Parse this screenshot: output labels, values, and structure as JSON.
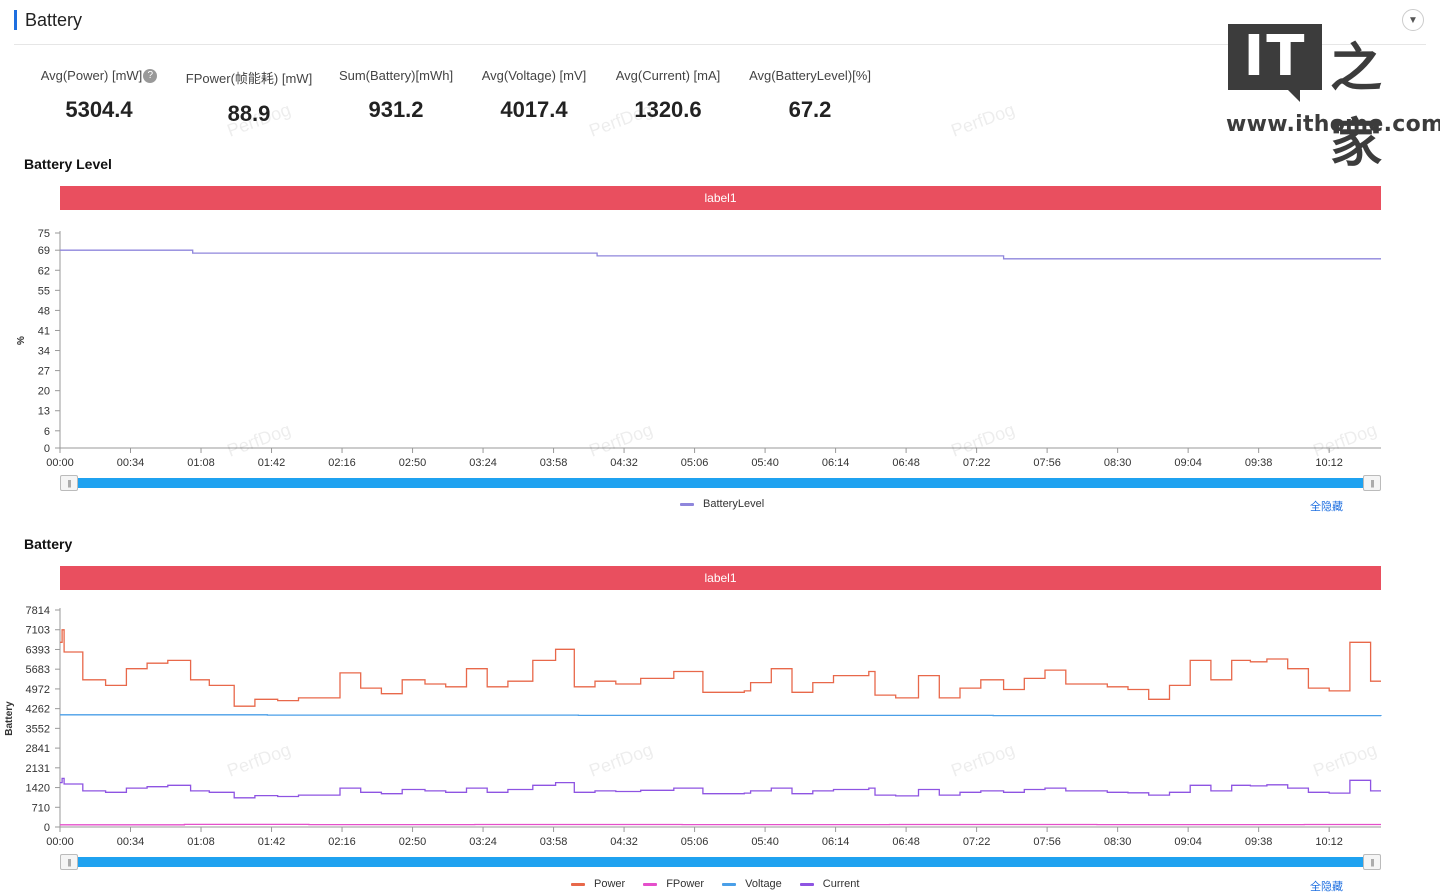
{
  "section": {
    "title": "Battery"
  },
  "stats": [
    {
      "label": "Avg(Power) [mW]",
      "value": "5304.4",
      "help": true
    },
    {
      "label": "FPower(帧能耗) [mW]",
      "value": "88.9"
    },
    {
      "label": "Sum(Battery)[mWh]",
      "value": "931.2"
    },
    {
      "label": "Avg(Voltage) [mV]",
      "value": "4017.4"
    },
    {
      "label": "Avg(Current) [mA]",
      "value": "1320.6"
    },
    {
      "label": "Avg(BatteryLevel)[%]",
      "value": "67.2"
    }
  ],
  "watermark": "PerfDog",
  "logo": {
    "it": "IT",
    "cn": "之家",
    "url": "www.ithome.com"
  },
  "hide_all_label": "全隐藏",
  "chart_data": [
    {
      "type": "line",
      "title": "Battery Level",
      "label_bar": "label1",
      "ylabel": "%",
      "yticks": [
        0,
        6,
        13,
        20,
        27,
        34,
        41,
        48,
        55,
        62,
        69,
        75
      ],
      "ylim": [
        0,
        75
      ],
      "x_ticks": [
        "00:00",
        "00:34",
        "01:08",
        "01:42",
        "02:16",
        "02:50",
        "03:24",
        "03:58",
        "04:32",
        "05:06",
        "05:40",
        "06:14",
        "06:48",
        "07:22",
        "07:56",
        "08:30",
        "09:04",
        "09:38",
        "10:12"
      ],
      "x_max_sec": 637,
      "grid": false,
      "series": [
        {
          "name": "BatteryLevel",
          "color": "#8f86dc",
          "points": [
            [
              0,
              69
            ],
            [
              64,
              69
            ],
            [
              64,
              68
            ],
            [
              259,
              68
            ],
            [
              259,
              67
            ],
            [
              455,
              67
            ],
            [
              455,
              66
            ],
            [
              637,
              66
            ]
          ]
        }
      ]
    },
    {
      "type": "line",
      "title": "Battery",
      "label_bar": "label1",
      "ylabel": "Battery",
      "yticks": [
        0,
        710,
        1420,
        2131,
        2841,
        3552,
        4262,
        4972,
        5683,
        6393,
        7103,
        7814
      ],
      "ylim": [
        0,
        7814
      ],
      "x_ticks": [
        "00:00",
        "00:34",
        "01:08",
        "01:42",
        "02:16",
        "02:50",
        "03:24",
        "03:58",
        "04:32",
        "05:06",
        "05:40",
        "06:14",
        "06:48",
        "07:22",
        "07:56",
        "08:30",
        "09:04",
        "09:38",
        "10:12"
      ],
      "x_max_sec": 637,
      "grid": false,
      "series": [
        {
          "name": "Power",
          "color": "#e8684a",
          "steps": [
            [
              0,
              6650
            ],
            [
              1,
              7100
            ],
            [
              2,
              6300
            ],
            [
              11,
              5300
            ],
            [
              22,
              5100
            ],
            [
              32,
              5700
            ],
            [
              42,
              5900
            ],
            [
              52,
              6000
            ],
            [
              63,
              5300
            ],
            [
              72,
              5100
            ],
            [
              84,
              4350
            ],
            [
              94,
              4600
            ],
            [
              105,
              4550
            ],
            [
              115,
              4650
            ],
            [
              135,
              5550
            ],
            [
              145,
              5000
            ],
            [
              155,
              4800
            ],
            [
              165,
              5300
            ],
            [
              176,
              5150
            ],
            [
              186,
              5050
            ],
            [
              196,
              5700
            ],
            [
              206,
              5050
            ],
            [
              216,
              5250
            ],
            [
              228,
              6000
            ],
            [
              239,
              6400
            ],
            [
              248,
              5050
            ],
            [
              258,
              5250
            ],
            [
              268,
              5150
            ],
            [
              280,
              5350
            ],
            [
              296,
              5600
            ],
            [
              310,
              4850
            ],
            [
              330,
              4900
            ],
            [
              333,
              5200
            ],
            [
              343,
              5700
            ],
            [
              353,
              4850
            ],
            [
              363,
              5200
            ],
            [
              373,
              5450
            ],
            [
              390,
              5600
            ],
            [
              393,
              4750
            ],
            [
              403,
              4650
            ],
            [
              414,
              5450
            ],
            [
              424,
              4650
            ],
            [
              434,
              5000
            ],
            [
              444,
              5300
            ],
            [
              455,
              4950
            ],
            [
              465,
              5350
            ],
            [
              475,
              5650
            ],
            [
              485,
              5150
            ],
            [
              505,
              5050
            ],
            [
              515,
              4950
            ],
            [
              525,
              4600
            ],
            [
              535,
              5100
            ],
            [
              545,
              6000
            ],
            [
              555,
              5300
            ],
            [
              565,
              6000
            ],
            [
              574,
              5950
            ],
            [
              582,
              6050
            ],
            [
              592,
              5700
            ],
            [
              602,
              5000
            ],
            [
              612,
              4900
            ],
            [
              622,
              6650
            ],
            [
              632,
              5250
            ],
            [
              637,
              5250
            ]
          ]
        },
        {
          "name": "FPower",
          "color": "#e54fcb",
          "steps": [
            [
              0,
              80
            ],
            [
              60,
              95
            ],
            [
              120,
              85
            ],
            [
              200,
              90
            ],
            [
              300,
              85
            ],
            [
              400,
              90
            ],
            [
              500,
              85
            ],
            [
              600,
              90
            ],
            [
              637,
              90
            ]
          ]
        },
        {
          "name": "Voltage",
          "color": "#4a9fe8",
          "steps": [
            [
              0,
              4040
            ],
            [
              100,
              4030
            ],
            [
              250,
              4020
            ],
            [
              450,
              4010
            ],
            [
              637,
              4000
            ]
          ]
        },
        {
          "name": "Current",
          "color": "#8e54e2",
          "steps": [
            [
              0,
              1600
            ],
            [
              1,
              1750
            ],
            [
              2,
              1550
            ],
            [
              11,
              1300
            ],
            [
              22,
              1250
            ],
            [
              32,
              1400
            ],
            [
              42,
              1450
            ],
            [
              52,
              1500
            ],
            [
              63,
              1300
            ],
            [
              72,
              1250
            ],
            [
              84,
              1050
            ],
            [
              94,
              1130
            ],
            [
              105,
              1100
            ],
            [
              115,
              1150
            ],
            [
              135,
              1400
            ],
            [
              145,
              1250
            ],
            [
              155,
              1200
            ],
            [
              165,
              1350
            ],
            [
              176,
              1300
            ],
            [
              186,
              1250
            ],
            [
              196,
              1400
            ],
            [
              206,
              1250
            ],
            [
              216,
              1350
            ],
            [
              228,
              1500
            ],
            [
              239,
              1600
            ],
            [
              248,
              1250
            ],
            [
              258,
              1300
            ],
            [
              268,
              1280
            ],
            [
              280,
              1320
            ],
            [
              296,
              1400
            ],
            [
              310,
              1200
            ],
            [
              330,
              1220
            ],
            [
              333,
              1300
            ],
            [
              343,
              1400
            ],
            [
              353,
              1200
            ],
            [
              363,
              1300
            ],
            [
              373,
              1350
            ],
            [
              390,
              1400
            ],
            [
              393,
              1150
            ],
            [
              403,
              1120
            ],
            [
              414,
              1350
            ],
            [
              424,
              1150
            ],
            [
              434,
              1250
            ],
            [
              444,
              1300
            ],
            [
              455,
              1250
            ],
            [
              465,
              1350
            ],
            [
              475,
              1400
            ],
            [
              485,
              1300
            ],
            [
              505,
              1250
            ],
            [
              515,
              1230
            ],
            [
              525,
              1150
            ],
            [
              535,
              1250
            ],
            [
              545,
              1500
            ],
            [
              555,
              1300
            ],
            [
              565,
              1500
            ],
            [
              574,
              1480
            ],
            [
              582,
              1520
            ],
            [
              592,
              1400
            ],
            [
              602,
              1250
            ],
            [
              612,
              1220
            ],
            [
              622,
              1680
            ],
            [
              632,
              1300
            ],
            [
              637,
              1300
            ]
          ]
        }
      ]
    }
  ]
}
